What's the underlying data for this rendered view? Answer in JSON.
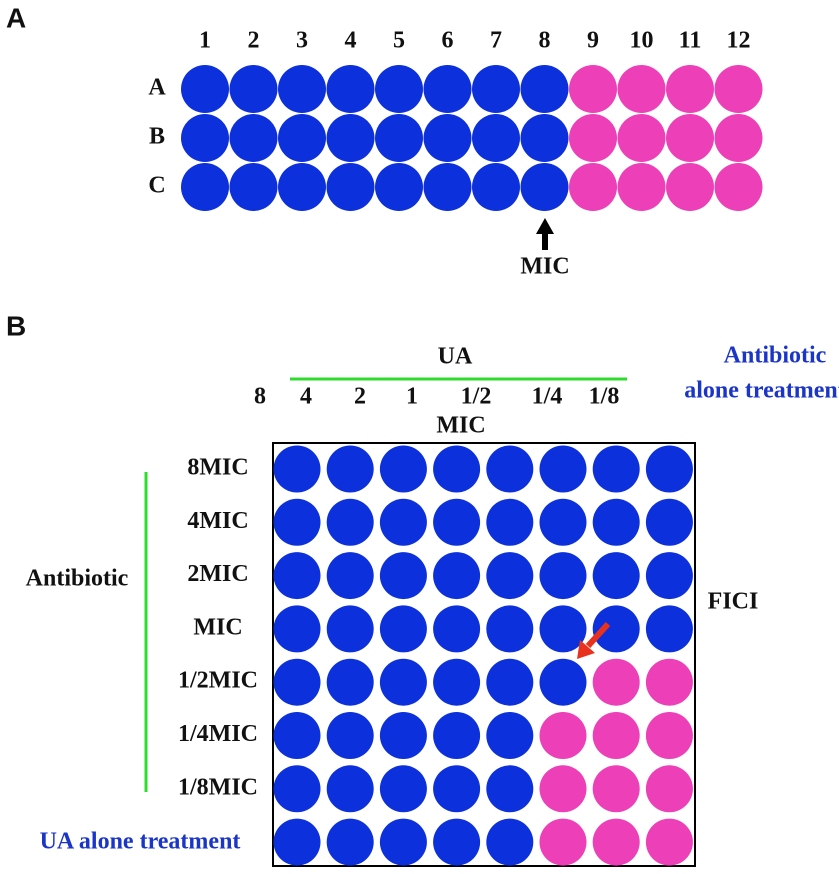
{
  "panel_a": {
    "label": "A",
    "columns": [
      "1",
      "2",
      "3",
      "4",
      "5",
      "6",
      "7",
      "8",
      "9",
      "10",
      "11",
      "12"
    ],
    "rows": [
      "A",
      "B",
      "C"
    ],
    "arrow_label": "MIC"
  },
  "panel_b": {
    "label": "B",
    "ua_label": "UA",
    "ua_columns": [
      "8",
      "4",
      "2",
      "1",
      "1/2",
      "1/4",
      "1/8"
    ],
    "mic_label": "MIC",
    "antibiotic_alone": [
      "Antibiotic",
      "alone treatment"
    ],
    "rows": [
      "8MIC",
      "4MIC",
      "2MIC",
      "MIC",
      "1/2MIC",
      "1/4MIC",
      "1/8MIC"
    ],
    "ua_alone": "UA alone treatment",
    "antibiotic_label": "Antibiotic",
    "fici": "FICI"
  }
}
